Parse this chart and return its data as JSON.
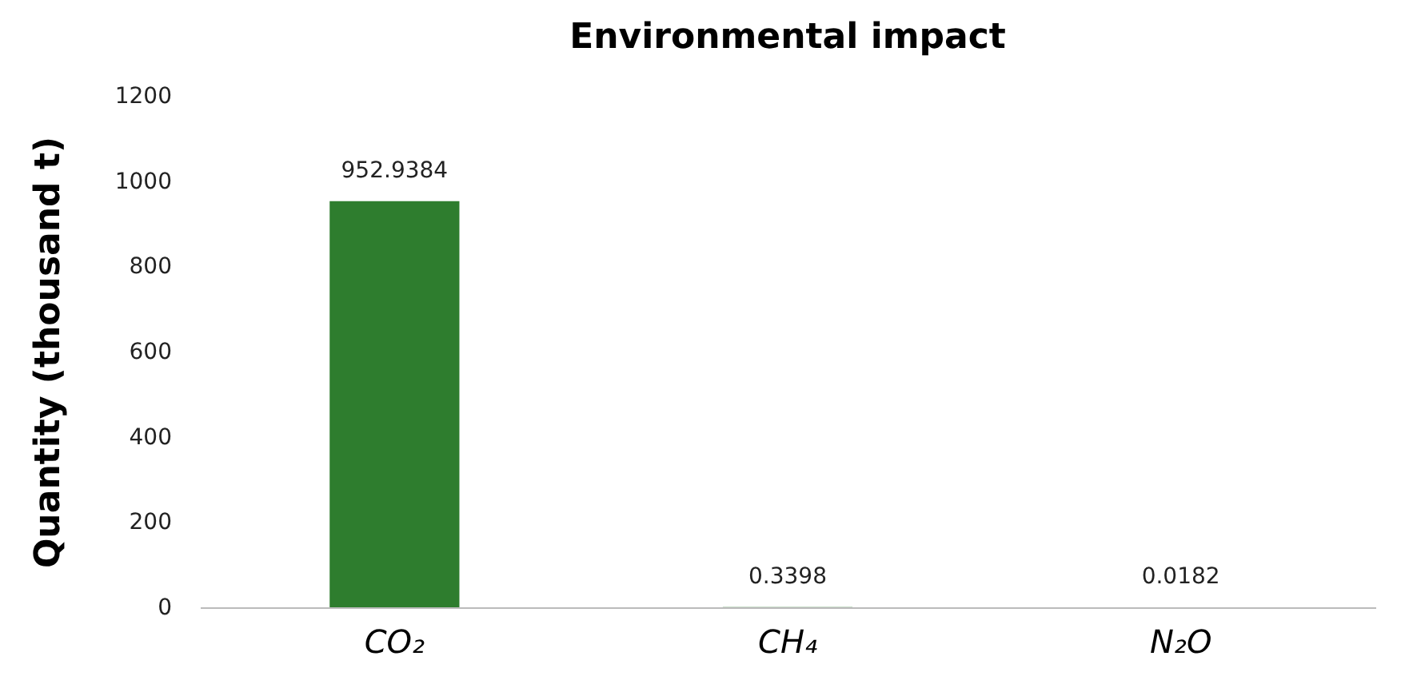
{
  "chart_data": {
    "type": "bar",
    "title": "Environmental  impact",
    "ylabel": "Quantity (thousand t)",
    "categories": [
      "CO₂",
      "CH₄",
      "N₂O"
    ],
    "values": [
      952.9384,
      0.3398,
      0.0182
    ],
    "color": "#2e7d2e",
    "ylim": [
      0,
      1200
    ],
    "yticks": [
      0,
      200,
      400,
      600,
      800,
      1000,
      1200
    ],
    "data_labels": true
  }
}
